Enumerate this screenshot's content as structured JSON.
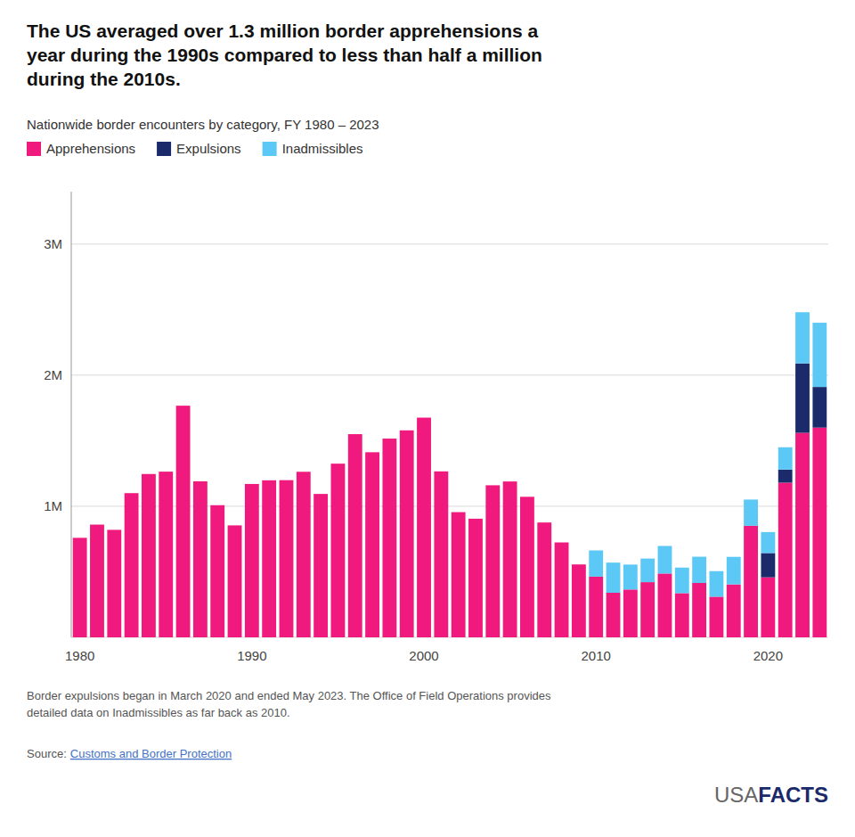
{
  "chart_data": {
    "type": "bar",
    "stacked": true,
    "title": "The US averaged over 1.3 million border apprehensions a\nyear during the 1990s compared to less than half a million\nduring the 2010s.",
    "subtitle": "Nationwide border encounters by category, FY 1980 – 2023",
    "annotations": [
      "Border expulsions began in March 2020 and ended May 2023. The Office of Field Operations provides\ndetailed data on Inadmissibles as far back as 2010.",
      "Source: ",
      "Customs and Border Protection",
      "USA",
      "FACTS"
    ],
    "categories": [
      "1980",
      null,
      null,
      null,
      null,
      null,
      null,
      null,
      null,
      null,
      "1990",
      null,
      null,
      null,
      null,
      null,
      null,
      null,
      null,
      null,
      "2000",
      null,
      null,
      null,
      null,
      null,
      null,
      null,
      null,
      null,
      "2010",
      null,
      null,
      null,
      null,
      null,
      null,
      null,
      null,
      null,
      "2020",
      null,
      null,
      null
    ],
    "series": [
      {
        "name": "Apprehensions",
        "color": "#F0197D",
        "values": [
          759000,
          860000,
          820000,
          1100000,
          1246000,
          1264000,
          1767000,
          1190000,
          1008000,
          854000,
          1170000,
          1198000,
          1199000,
          1263000,
          1094000,
          1325000,
          1550000,
          1412000,
          1516000,
          1579000,
          1676000,
          1266000,
          955000,
          905000,
          1160000,
          1189000,
          1072000,
          876000,
          724000,
          556000,
          463000,
          340000,
          365000,
          421000,
          487000,
          337000,
          415000,
          310000,
          404000,
          851000,
          458000,
          1180000,
          1560000,
          1600000
        ]
      },
      {
        "name": "Expulsions",
        "color": "#1B2A6B",
        "values": [
          0,
          0,
          0,
          0,
          0,
          0,
          0,
          0,
          0,
          0,
          0,
          0,
          0,
          0,
          0,
          0,
          0,
          0,
          0,
          0,
          0,
          0,
          0,
          0,
          0,
          0,
          0,
          0,
          0,
          0,
          0,
          0,
          0,
          0,
          0,
          0,
          0,
          0,
          0,
          0,
          185000,
          100000,
          530000,
          310000
        ]
      },
      {
        "name": "Inadmissibles",
        "color": "#5BC8F5",
        "values": [
          0,
          0,
          0,
          0,
          0,
          0,
          0,
          0,
          0,
          0,
          0,
          0,
          0,
          0,
          0,
          0,
          0,
          0,
          0,
          0,
          0,
          0,
          0,
          0,
          0,
          0,
          0,
          0,
          0,
          0,
          200000,
          230000,
          190000,
          180000,
          210000,
          195000,
          200000,
          195000,
          210000,
          200000,
          160000,
          170000,
          390000,
          490000
        ]
      }
    ],
    "ylim": [
      0,
      3400000
    ],
    "yticks": [
      {
        "value": 0,
        "label": ""
      },
      {
        "value": 1000000,
        "label": "1M"
      },
      {
        "value": 2000000,
        "label": "2M"
      },
      {
        "value": 3000000,
        "label": "3M"
      }
    ],
    "grid": true,
    "legend": "top-left"
  }
}
